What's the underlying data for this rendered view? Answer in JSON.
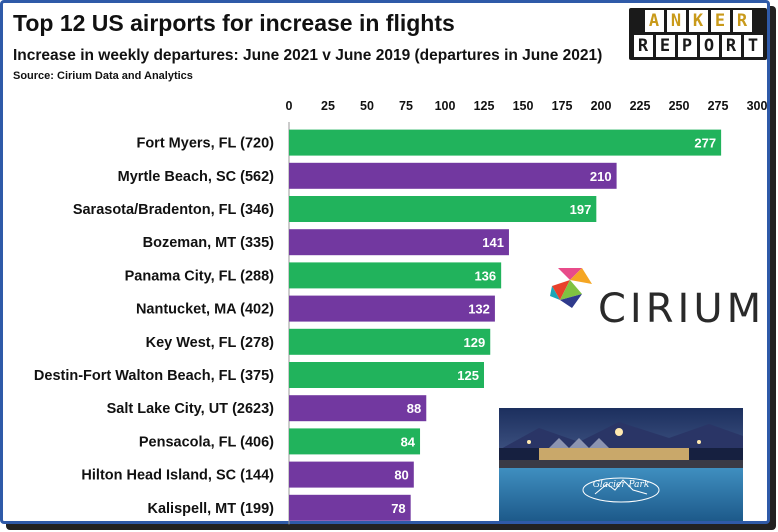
{
  "header": {
    "title": "Top 12 US airports for increase in flights",
    "subtitle": "Increase in weekly departures: June 2021 v June 2019 (departures in June 2021)",
    "source": "Source: Cirium Data and Analytics"
  },
  "logo": {
    "line1": [
      "A",
      "N",
      "K",
      "E",
      "R"
    ],
    "line2": [
      "R",
      "E",
      "P",
      "O",
      "R",
      "T"
    ]
  },
  "cirium": {
    "wordmark": "CIRIUM"
  },
  "photo": {
    "caption": "Glacier Park"
  },
  "colors": {
    "green": "#21b35c",
    "purple": "#7238a0",
    "frame": "#2f5aa8"
  },
  "chart_data": {
    "type": "bar",
    "orientation": "horizontal",
    "categories": [
      "Fort Myers, FL (720)",
      "Myrtle Beach, SC (562)",
      "Sarasota/Bradenton, FL (346)",
      "Bozeman, MT (335)",
      "Panama City, FL (288)",
      "Nantucket, MA (402)",
      "Key West, FL (278)",
      "Destin-Fort Walton Beach, FL (375)",
      "Salt Lake City, UT (2623)",
      "Pensacola, FL (406)",
      "Hilton Head Island, SC (144)",
      "Kalispell, MT (199)"
    ],
    "values": [
      277,
      210,
      197,
      141,
      136,
      132,
      129,
      125,
      88,
      84,
      80,
      78
    ],
    "bar_colors": [
      "green",
      "purple",
      "green",
      "purple",
      "green",
      "purple",
      "green",
      "green",
      "purple",
      "green",
      "purple",
      "purple"
    ],
    "xlim": [
      0,
      300
    ],
    "xticks": [
      0,
      25,
      50,
      75,
      100,
      125,
      150,
      175,
      200,
      225,
      250,
      275,
      300
    ],
    "axis_position": "top",
    "grid": false,
    "data_labels": "inside-end"
  }
}
